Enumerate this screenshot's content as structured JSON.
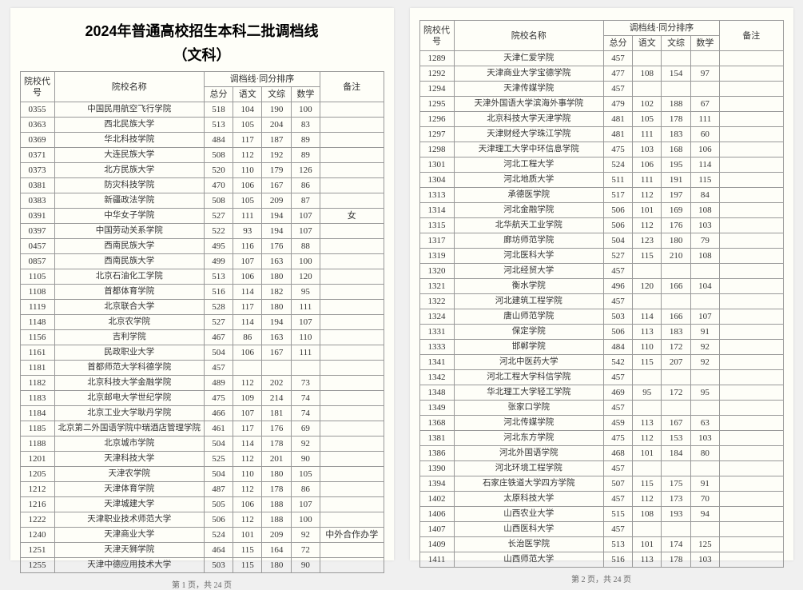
{
  "title": "2024年普通高校招生本科二批调档线",
  "subtitle": "（文科）",
  "headers": {
    "code": "院校代号",
    "name": "院校名称",
    "scoreGroup": "调档线·同分排序",
    "total": "总分",
    "chinese": "语文",
    "comprehensive": "文综",
    "math": "数学",
    "remark": "备注"
  },
  "footer1": "第 1 页，共 24 页",
  "footer2": "第 2 页，共 24 页",
  "page1": [
    {
      "code": "0355",
      "name": "中国民用航空飞行学院",
      "total": "518",
      "ch": "104",
      "co": "190",
      "ma": "100",
      "rm": ""
    },
    {
      "code": "0363",
      "name": "西北民族大学",
      "total": "513",
      "ch": "105",
      "co": "204",
      "ma": "83",
      "rm": ""
    },
    {
      "code": "0369",
      "name": "华北科技学院",
      "total": "484",
      "ch": "117",
      "co": "187",
      "ma": "89",
      "rm": ""
    },
    {
      "code": "0371",
      "name": "大连民族大学",
      "total": "508",
      "ch": "112",
      "co": "192",
      "ma": "89",
      "rm": ""
    },
    {
      "code": "0373",
      "name": "北方民族大学",
      "total": "520",
      "ch": "110",
      "co": "179",
      "ma": "126",
      "rm": ""
    },
    {
      "code": "0381",
      "name": "防灾科技学院",
      "total": "470",
      "ch": "106",
      "co": "167",
      "ma": "86",
      "rm": ""
    },
    {
      "code": "0383",
      "name": "新疆政法学院",
      "total": "508",
      "ch": "105",
      "co": "209",
      "ma": "87",
      "rm": ""
    },
    {
      "code": "0391",
      "name": "中华女子学院",
      "total": "527",
      "ch": "111",
      "co": "194",
      "ma": "107",
      "rm": "女"
    },
    {
      "code": "0397",
      "name": "中国劳动关系学院",
      "total": "522",
      "ch": "93",
      "co": "194",
      "ma": "107",
      "rm": ""
    },
    {
      "code": "0457",
      "name": "西南民族大学",
      "total": "495",
      "ch": "116",
      "co": "176",
      "ma": "88",
      "rm": ""
    },
    {
      "code": "0857",
      "name": "西南民族大学",
      "total": "499",
      "ch": "107",
      "co": "163",
      "ma": "100",
      "rm": ""
    },
    {
      "code": "1105",
      "name": "北京石油化工学院",
      "total": "513",
      "ch": "106",
      "co": "180",
      "ma": "120",
      "rm": ""
    },
    {
      "code": "1108",
      "name": "首都体育学院",
      "total": "516",
      "ch": "114",
      "co": "182",
      "ma": "95",
      "rm": ""
    },
    {
      "code": "1119",
      "name": "北京联合大学",
      "total": "528",
      "ch": "117",
      "co": "180",
      "ma": "111",
      "rm": ""
    },
    {
      "code": "1148",
      "name": "北京农学院",
      "total": "527",
      "ch": "114",
      "co": "194",
      "ma": "107",
      "rm": ""
    },
    {
      "code": "1156",
      "name": "吉利学院",
      "total": "467",
      "ch": "86",
      "co": "163",
      "ma": "110",
      "rm": ""
    },
    {
      "code": "1161",
      "name": "民政职业大学",
      "total": "504",
      "ch": "106",
      "co": "167",
      "ma": "111",
      "rm": ""
    },
    {
      "code": "1181",
      "name": "首都师范大学科德学院",
      "total": "457",
      "ch": "",
      "co": "",
      "ma": "",
      "rm": ""
    },
    {
      "code": "1182",
      "name": "北京科技大学金融学院",
      "total": "489",
      "ch": "112",
      "co": "202",
      "ma": "73",
      "rm": ""
    },
    {
      "code": "1183",
      "name": "北京邮电大学世纪学院",
      "total": "475",
      "ch": "109",
      "co": "214",
      "ma": "74",
      "rm": ""
    },
    {
      "code": "1184",
      "name": "北京工业大学耿丹学院",
      "total": "466",
      "ch": "107",
      "co": "181",
      "ma": "74",
      "rm": ""
    },
    {
      "code": "1185",
      "name": "北京第二外国语学院中瑞酒店管理学院",
      "total": "461",
      "ch": "117",
      "co": "176",
      "ma": "69",
      "rm": ""
    },
    {
      "code": "1188",
      "name": "北京城市学院",
      "total": "504",
      "ch": "114",
      "co": "178",
      "ma": "92",
      "rm": ""
    },
    {
      "code": "1201",
      "name": "天津科技大学",
      "total": "525",
      "ch": "112",
      "co": "201",
      "ma": "90",
      "rm": ""
    },
    {
      "code": "1205",
      "name": "天津农学院",
      "total": "504",
      "ch": "110",
      "co": "180",
      "ma": "105",
      "rm": ""
    },
    {
      "code": "1212",
      "name": "天津体育学院",
      "total": "487",
      "ch": "112",
      "co": "178",
      "ma": "86",
      "rm": ""
    },
    {
      "code": "1216",
      "name": "天津城建大学",
      "total": "505",
      "ch": "106",
      "co": "188",
      "ma": "107",
      "rm": ""
    },
    {
      "code": "1222",
      "name": "天津职业技术师范大学",
      "total": "506",
      "ch": "112",
      "co": "188",
      "ma": "100",
      "rm": ""
    },
    {
      "code": "1240",
      "name": "天津商业大学",
      "total": "524",
      "ch": "101",
      "co": "209",
      "ma": "92",
      "rm": "中外合作办学"
    },
    {
      "code": "1251",
      "name": "天津天狮学院",
      "total": "464",
      "ch": "115",
      "co": "164",
      "ma": "72",
      "rm": ""
    },
    {
      "code": "1255",
      "name": "天津中德应用技术大学",
      "total": "503",
      "ch": "115",
      "co": "180",
      "ma": "90",
      "rm": ""
    }
  ],
  "page2": [
    {
      "code": "1289",
      "name": "天津仁爱学院",
      "total": "457",
      "ch": "",
      "co": "",
      "ma": "",
      "rm": ""
    },
    {
      "code": "1292",
      "name": "天津商业大学宝德学院",
      "total": "477",
      "ch": "108",
      "co": "154",
      "ma": "97",
      "rm": ""
    },
    {
      "code": "1294",
      "name": "天津传媒学院",
      "total": "457",
      "ch": "",
      "co": "",
      "ma": "",
      "rm": ""
    },
    {
      "code": "1295",
      "name": "天津外国语大学滨海外事学院",
      "total": "479",
      "ch": "102",
      "co": "188",
      "ma": "67",
      "rm": ""
    },
    {
      "code": "1296",
      "name": "北京科技大学天津学院",
      "total": "481",
      "ch": "105",
      "co": "178",
      "ma": "111",
      "rm": ""
    },
    {
      "code": "1297",
      "name": "天津财经大学珠江学院",
      "total": "481",
      "ch": "111",
      "co": "183",
      "ma": "60",
      "rm": ""
    },
    {
      "code": "1298",
      "name": "天津理工大学中环信息学院",
      "total": "475",
      "ch": "103",
      "co": "168",
      "ma": "106",
      "rm": ""
    },
    {
      "code": "1301",
      "name": "河北工程大学",
      "total": "524",
      "ch": "106",
      "co": "195",
      "ma": "114",
      "rm": ""
    },
    {
      "code": "1304",
      "name": "河北地质大学",
      "total": "511",
      "ch": "111",
      "co": "191",
      "ma": "115",
      "rm": ""
    },
    {
      "code": "1313",
      "name": "承德医学院",
      "total": "517",
      "ch": "112",
      "co": "197",
      "ma": "84",
      "rm": ""
    },
    {
      "code": "1314",
      "name": "河北金融学院",
      "total": "506",
      "ch": "101",
      "co": "169",
      "ma": "108",
      "rm": ""
    },
    {
      "code": "1315",
      "name": "北华航天工业学院",
      "total": "506",
      "ch": "112",
      "co": "176",
      "ma": "103",
      "rm": ""
    },
    {
      "code": "1317",
      "name": "廊坊师范学院",
      "total": "504",
      "ch": "123",
      "co": "180",
      "ma": "79",
      "rm": ""
    },
    {
      "code": "1319",
      "name": "河北医科大学",
      "total": "527",
      "ch": "115",
      "co": "210",
      "ma": "108",
      "rm": ""
    },
    {
      "code": "1320",
      "name": "河北经贸大学",
      "total": "457",
      "ch": "",
      "co": "",
      "ma": "",
      "rm": ""
    },
    {
      "code": "1321",
      "name": "衡水学院",
      "total": "496",
      "ch": "120",
      "co": "166",
      "ma": "104",
      "rm": ""
    },
    {
      "code": "1322",
      "name": "河北建筑工程学院",
      "total": "457",
      "ch": "",
      "co": "",
      "ma": "",
      "rm": ""
    },
    {
      "code": "1324",
      "name": "唐山师范学院",
      "total": "503",
      "ch": "114",
      "co": "166",
      "ma": "107",
      "rm": ""
    },
    {
      "code": "1331",
      "name": "保定学院",
      "total": "506",
      "ch": "113",
      "co": "183",
      "ma": "91",
      "rm": ""
    },
    {
      "code": "1333",
      "name": "邯郸学院",
      "total": "484",
      "ch": "110",
      "co": "172",
      "ma": "92",
      "rm": ""
    },
    {
      "code": "1341",
      "name": "河北中医药大学",
      "total": "542",
      "ch": "115",
      "co": "207",
      "ma": "92",
      "rm": ""
    },
    {
      "code": "1342",
      "name": "河北工程大学科信学院",
      "total": "457",
      "ch": "",
      "co": "",
      "ma": "",
      "rm": ""
    },
    {
      "code": "1348",
      "name": "华北理工大学轻工学院",
      "total": "469",
      "ch": "95",
      "co": "172",
      "ma": "95",
      "rm": ""
    },
    {
      "code": "1349",
      "name": "张家口学院",
      "total": "457",
      "ch": "",
      "co": "",
      "ma": "",
      "rm": ""
    },
    {
      "code": "1368",
      "name": "河北传媒学院",
      "total": "459",
      "ch": "113",
      "co": "167",
      "ma": "63",
      "rm": ""
    },
    {
      "code": "1381",
      "name": "河北东方学院",
      "total": "475",
      "ch": "112",
      "co": "153",
      "ma": "103",
      "rm": ""
    },
    {
      "code": "1386",
      "name": "河北外国语学院",
      "total": "468",
      "ch": "101",
      "co": "184",
      "ma": "80",
      "rm": ""
    },
    {
      "code": "1390",
      "name": "河北环境工程学院",
      "total": "457",
      "ch": "",
      "co": "",
      "ma": "",
      "rm": ""
    },
    {
      "code": "1394",
      "name": "石家庄铁道大学四方学院",
      "total": "507",
      "ch": "115",
      "co": "175",
      "ma": "91",
      "rm": ""
    },
    {
      "code": "1402",
      "name": "太原科技大学",
      "total": "457",
      "ch": "112",
      "co": "173",
      "ma": "70",
      "rm": ""
    },
    {
      "code": "1406",
      "name": "山西农业大学",
      "total": "515",
      "ch": "108",
      "co": "193",
      "ma": "94",
      "rm": ""
    },
    {
      "code": "1407",
      "name": "山西医科大学",
      "total": "457",
      "ch": "",
      "co": "",
      "ma": "",
      "rm": ""
    },
    {
      "code": "1409",
      "name": "长治医学院",
      "total": "513",
      "ch": "101",
      "co": "174",
      "ma": "125",
      "rm": ""
    },
    {
      "code": "1411",
      "name": "山西师范大学",
      "total": "516",
      "ch": "113",
      "co": "178",
      "ma": "103",
      "rm": ""
    }
  ]
}
